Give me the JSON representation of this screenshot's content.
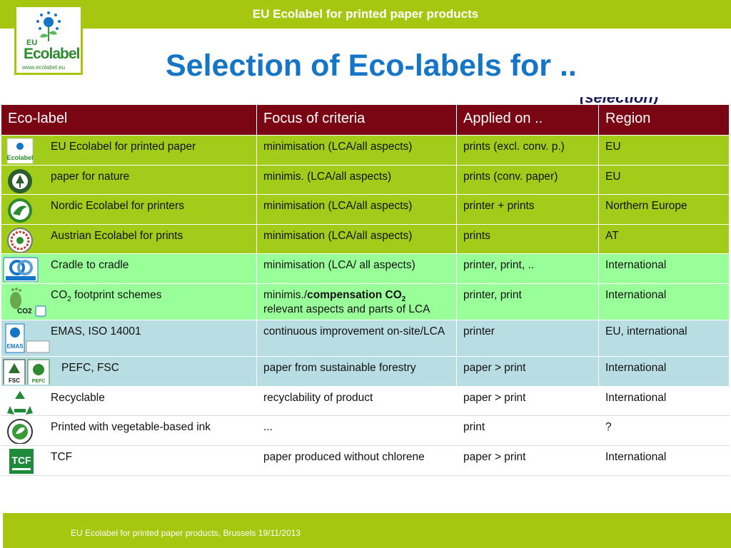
{
  "header": {
    "title": "EU Ecolabel for printed paper products",
    "logo": {
      "eu": "EU",
      "word": "Ecolabel",
      "url": "www.ecolabel.eu"
    }
  },
  "slide": {
    "heading": "Selection of Eco-labels for ..",
    "subheading_partial": "(selection)"
  },
  "table": {
    "headers": [
      "Eco-label",
      "Focus of criteria",
      "Applied on ..",
      "Region"
    ],
    "rows": [
      {
        "label": "EU Ecolabel for printed paper",
        "focus": "minimisation (LCA/all aspects)",
        "applied": "prints (excl. conv. p.)",
        "region": "EU",
        "icon": "eu-ecolabel-icon"
      },
      {
        "label": "paper for nature",
        "focus": "minimis. (LCA/all aspects)",
        "applied": "prints (conv. paper)",
        "region": "EU",
        "icon": "paper-for-nature-icon"
      },
      {
        "label": "Nordic Ecolabel for printers",
        "focus": "minimisation (LCA/all aspects)",
        "applied": "printer + prints",
        "region": "Northern Europe",
        "icon": "nordic-swan-icon"
      },
      {
        "label": "Austrian Ecolabel for prints",
        "focus": "minimisation (LCA/all aspects)",
        "applied": "prints",
        "region": "AT",
        "icon": "austrian-ecolabel-icon"
      },
      {
        "label": "Cradle to cradle",
        "focus": "minimisation (LCA/ all aspects)",
        "applied": "printer, print, ..",
        "region": "International",
        "icon": "cradle-to-cradle-icon"
      },
      {
        "label_prefix": "CO",
        "label_sub": "2",
        "label_suffix": " footprint schemes",
        "focus_prefix": "minimis./",
        "focus_bold": "compensation CO",
        "focus_sub": "2",
        "focus_line2": "relevant aspects and parts of LCA",
        "applied": "printer, print",
        "region": "International",
        "icon": "co2-footprint-icon",
        "icon_text": "CO2"
      },
      {
        "label": "EMAS, ISO 14001",
        "focus": "continuous improvement on-site/LCA",
        "applied": "printer",
        "region": "EU, international",
        "icon": "emas-iso-icon",
        "icon_text": "EMAS"
      },
      {
        "label": "PEFC, FSC",
        "focus": "paper from sustainable forestry",
        "applied": "paper > print",
        "region": "International",
        "icon": "pefc-fsc-icon",
        "icon_text_a": "FSC",
        "icon_text_b": "PEFC"
      },
      {
        "label": "Recyclable",
        "focus": "recyclability of product",
        "applied": "paper > print",
        "region": "International",
        "icon": "recycle-icon"
      },
      {
        "label": "Printed with vegetable-based ink",
        "focus": "...",
        "applied": "print",
        "region": "?",
        "icon": "vegetable-ink-icon"
      },
      {
        "label": "TCF",
        "focus": "paper produced without chlorene",
        "applied": "paper > print",
        "region": "International",
        "icon": "tcf-icon",
        "icon_text": "TCF"
      }
    ]
  },
  "footer": {
    "text": "EU Ecolabel for printed paper products, Brussels 19/11/2013"
  },
  "colors": {
    "bar": "#a6c60f",
    "heading": "#1576c8",
    "table_header": "#7a0613",
    "row_green": "#a2cc1a",
    "row_lightgreen": "#99ff99",
    "row_blue": "#b8dde2"
  }
}
